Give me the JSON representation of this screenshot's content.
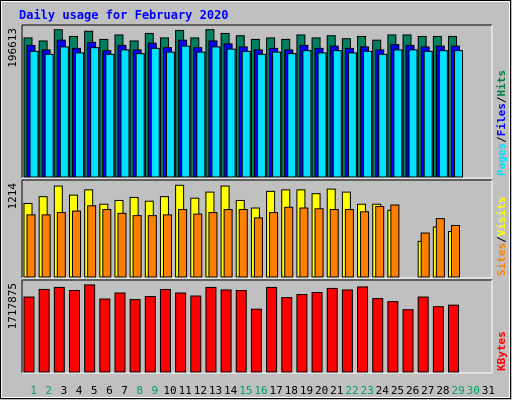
{
  "chart_data": {
    "type": "bar",
    "title": "Daily usage for February 2020",
    "categories": [
      "1",
      "2",
      "3",
      "4",
      "5",
      "6",
      "7",
      "8",
      "9",
      "10",
      "11",
      "12",
      "13",
      "14",
      "15",
      "16",
      "17",
      "18",
      "19",
      "20",
      "21",
      "22",
      "23",
      "24",
      "25",
      "26",
      "27",
      "28",
      "29",
      "30",
      "31"
    ],
    "weekend_days": [
      "1",
      "2",
      "8",
      "9",
      "15",
      "16",
      "22",
      "23",
      "29",
      "30"
    ],
    "panels": [
      {
        "id": "hits-files-pages",
        "y_max_label": "196613",
        "y_max": 196613,
        "ylabel_parts": [
          {
            "text": "Pages",
            "color": "#00e0ff"
          },
          {
            "text": "/",
            "color": "#000000"
          },
          {
            "text": "Files",
            "color": "#0000ff"
          },
          {
            "text": "/",
            "color": "#000000"
          },
          {
            "text": "Hits",
            "color": "#008040"
          }
        ],
        "series": [
          {
            "name": "Hits",
            "color": "#008060",
            "values": [
              186000,
              182000,
              197000,
              188000,
              195000,
              184000,
              190000,
              182000,
              192000,
              186000,
              196000,
              186000,
              197000,
              192000,
              189000,
              184000,
              186000,
              184000,
              190000,
              186000,
              189000,
              185000,
              188000,
              183000,
              190000,
              190000,
              188000,
              188000,
              188000,
              0,
              0
            ]
          },
          {
            "name": "Files",
            "color": "#0000ff",
            "values": [
              176000,
              170000,
              183000,
              172000,
              180000,
              169000,
              176000,
              170000,
              179000,
              173000,
              183000,
              173000,
              182000,
              178000,
              174000,
              170000,
              172000,
              170000,
              176000,
              172000,
              175000,
              172000,
              174000,
              170000,
              177000,
              176000,
              174000,
              175000,
              175000,
              0,
              0
            ]
          },
          {
            "name": "Pages",
            "color": "#00e0ff",
            "values": [
              168000,
              164000,
              174000,
              166000,
              173000,
              164000,
              170000,
              165000,
              172000,
              167000,
              175000,
              167000,
              174000,
              171000,
              168000,
              164000,
              167000,
              165000,
              169000,
              166000,
              169000,
              166000,
              168000,
              164000,
              170000,
              170000,
              168000,
              169000,
              169000,
              0,
              0
            ]
          }
        ]
      },
      {
        "id": "visits-sites",
        "y_max_label": "1214",
        "y_max": 1214,
        "ylabel_parts": [
          {
            "text": "Sites",
            "color": "#ff8000"
          },
          {
            "text": "/",
            "color": "#000000"
          },
          {
            "text": "Visits",
            "color": "#ffff00"
          }
        ],
        "series": [
          {
            "name": "Visits",
            "color": "#ffff00",
            "values": [
              970,
              1060,
              1200,
              1080,
              1150,
              960,
              1010,
              1050,
              1000,
              1060,
              1210,
              1040,
              1120,
              1200,
              1010,
              910,
              1130,
              1150,
              1150,
              1100,
              1160,
              1120,
              960,
              960,
              880,
              0,
              470,
              660,
              600,
              0,
              0
            ]
          },
          {
            "name": "Sites",
            "color": "#ff8000",
            "values": [
              820,
              820,
              850,
              870,
              940,
              890,
              840,
              810,
              810,
              820,
              890,
              830,
              850,
              890,
              890,
              780,
              850,
              920,
              910,
              900,
              890,
              890,
              860,
              930,
              950,
              0,
              580,
              770,
              680,
              0,
              0
            ]
          }
        ]
      },
      {
        "id": "kbytes",
        "y_max_label": "1717875",
        "y_max": 1717875,
        "ylabel_parts": [
          {
            "text": "KBytes",
            "color": "#ff0000"
          }
        ],
        "series": [
          {
            "name": "KBytes",
            "color": "#ff0000",
            "values": [
              1480000,
              1630000,
              1670000,
              1610000,
              1720000,
              1440000,
              1560000,
              1430000,
              1490000,
              1630000,
              1560000,
              1500000,
              1670000,
              1620000,
              1610000,
              1240000,
              1670000,
              1470000,
              1530000,
              1570000,
              1650000,
              1620000,
              1680000,
              1450000,
              1390000,
              1230000,
              1480000,
              1290000,
              1320000,
              0,
              0
            ]
          }
        ]
      }
    ],
    "colors": {
      "background": "#c0c0c0",
      "title": "#0000ff",
      "weekday_label": "#000000",
      "weekend_label": "#00a060"
    }
  }
}
